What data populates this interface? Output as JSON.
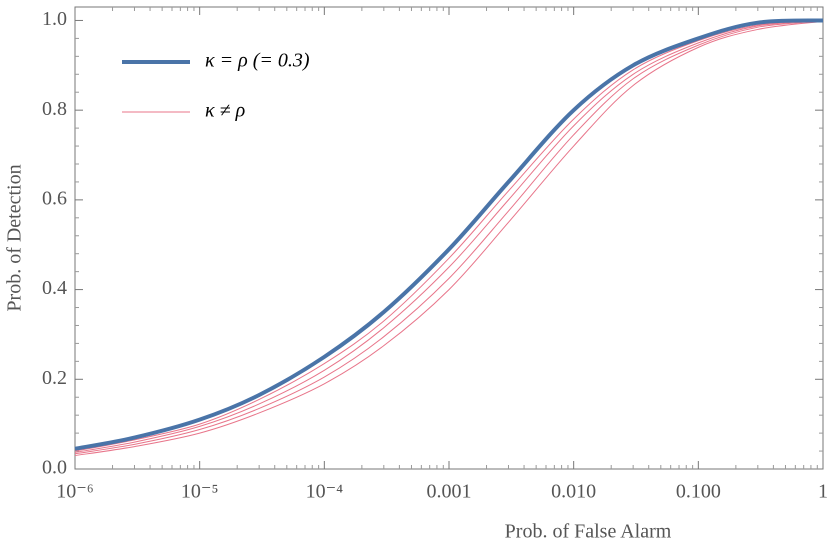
{
  "chart_data": {
    "type": "line",
    "xlabel": "Prob. of False Alarm",
    "ylabel": "Prob. of Detection",
    "x": [
      1e-06,
      3e-06,
      1e-05,
      3e-05,
      0.0001,
      0.0003,
      0.001,
      0.003,
      0.01,
      0.03,
      0.1,
      0.3,
      1
    ],
    "series": [
      {
        "name": "κ = ρ (= 0.3)",
        "color": "#4a74a8",
        "width": 4,
        "values": [
          0.045,
          0.07,
          0.11,
          0.165,
          0.25,
          0.35,
          0.49,
          0.64,
          0.8,
          0.9,
          0.96,
          0.995,
          1.0
        ]
      },
      {
        "name": "κ ≠ ρ",
        "color": "#e8758a",
        "width": 1,
        "values": [
          0.04,
          0.065,
          0.1,
          0.155,
          0.235,
          0.33,
          0.47,
          0.62,
          0.78,
          0.89,
          0.955,
          0.99,
          1.0
        ]
      },
      {
        "color": "#e8758a",
        "width": 1,
        "values": [
          0.037,
          0.06,
          0.095,
          0.145,
          0.22,
          0.315,
          0.45,
          0.6,
          0.765,
          0.88,
          0.95,
          0.988,
          1.0
        ]
      },
      {
        "color": "#e8758a",
        "width": 1,
        "values": [
          0.034,
          0.055,
          0.088,
          0.135,
          0.205,
          0.295,
          0.425,
          0.575,
          0.745,
          0.87,
          0.945,
          0.985,
          0.999
        ]
      },
      {
        "color": "#e8758a",
        "width": 1,
        "values": [
          0.03,
          0.05,
          0.08,
          0.125,
          0.19,
          0.275,
          0.4,
          0.55,
          0.72,
          0.855,
          0.94,
          0.98,
          0.998
        ]
      }
    ],
    "xscale": "log",
    "xlim": [
      1e-06,
      1
    ],
    "ylim": [
      0,
      1.03
    ],
    "xticks": [
      {
        "value": 1e-06,
        "label": "10⁻⁶"
      },
      {
        "value": 1e-05,
        "label": "10⁻⁵"
      },
      {
        "value": 0.0001,
        "label": "10⁻⁴"
      },
      0.001,
      {
        "value": 0.01,
        "label": "0.010"
      },
      {
        "value": 0.1,
        "label": "0.100"
      },
      1
    ],
    "yticks": [
      {
        "value": 0,
        "label": "0.0"
      },
      0.2,
      0.4,
      0.6,
      0.8,
      {
        "value": 1,
        "label": "1.0"
      }
    ],
    "legend": "upper left"
  }
}
